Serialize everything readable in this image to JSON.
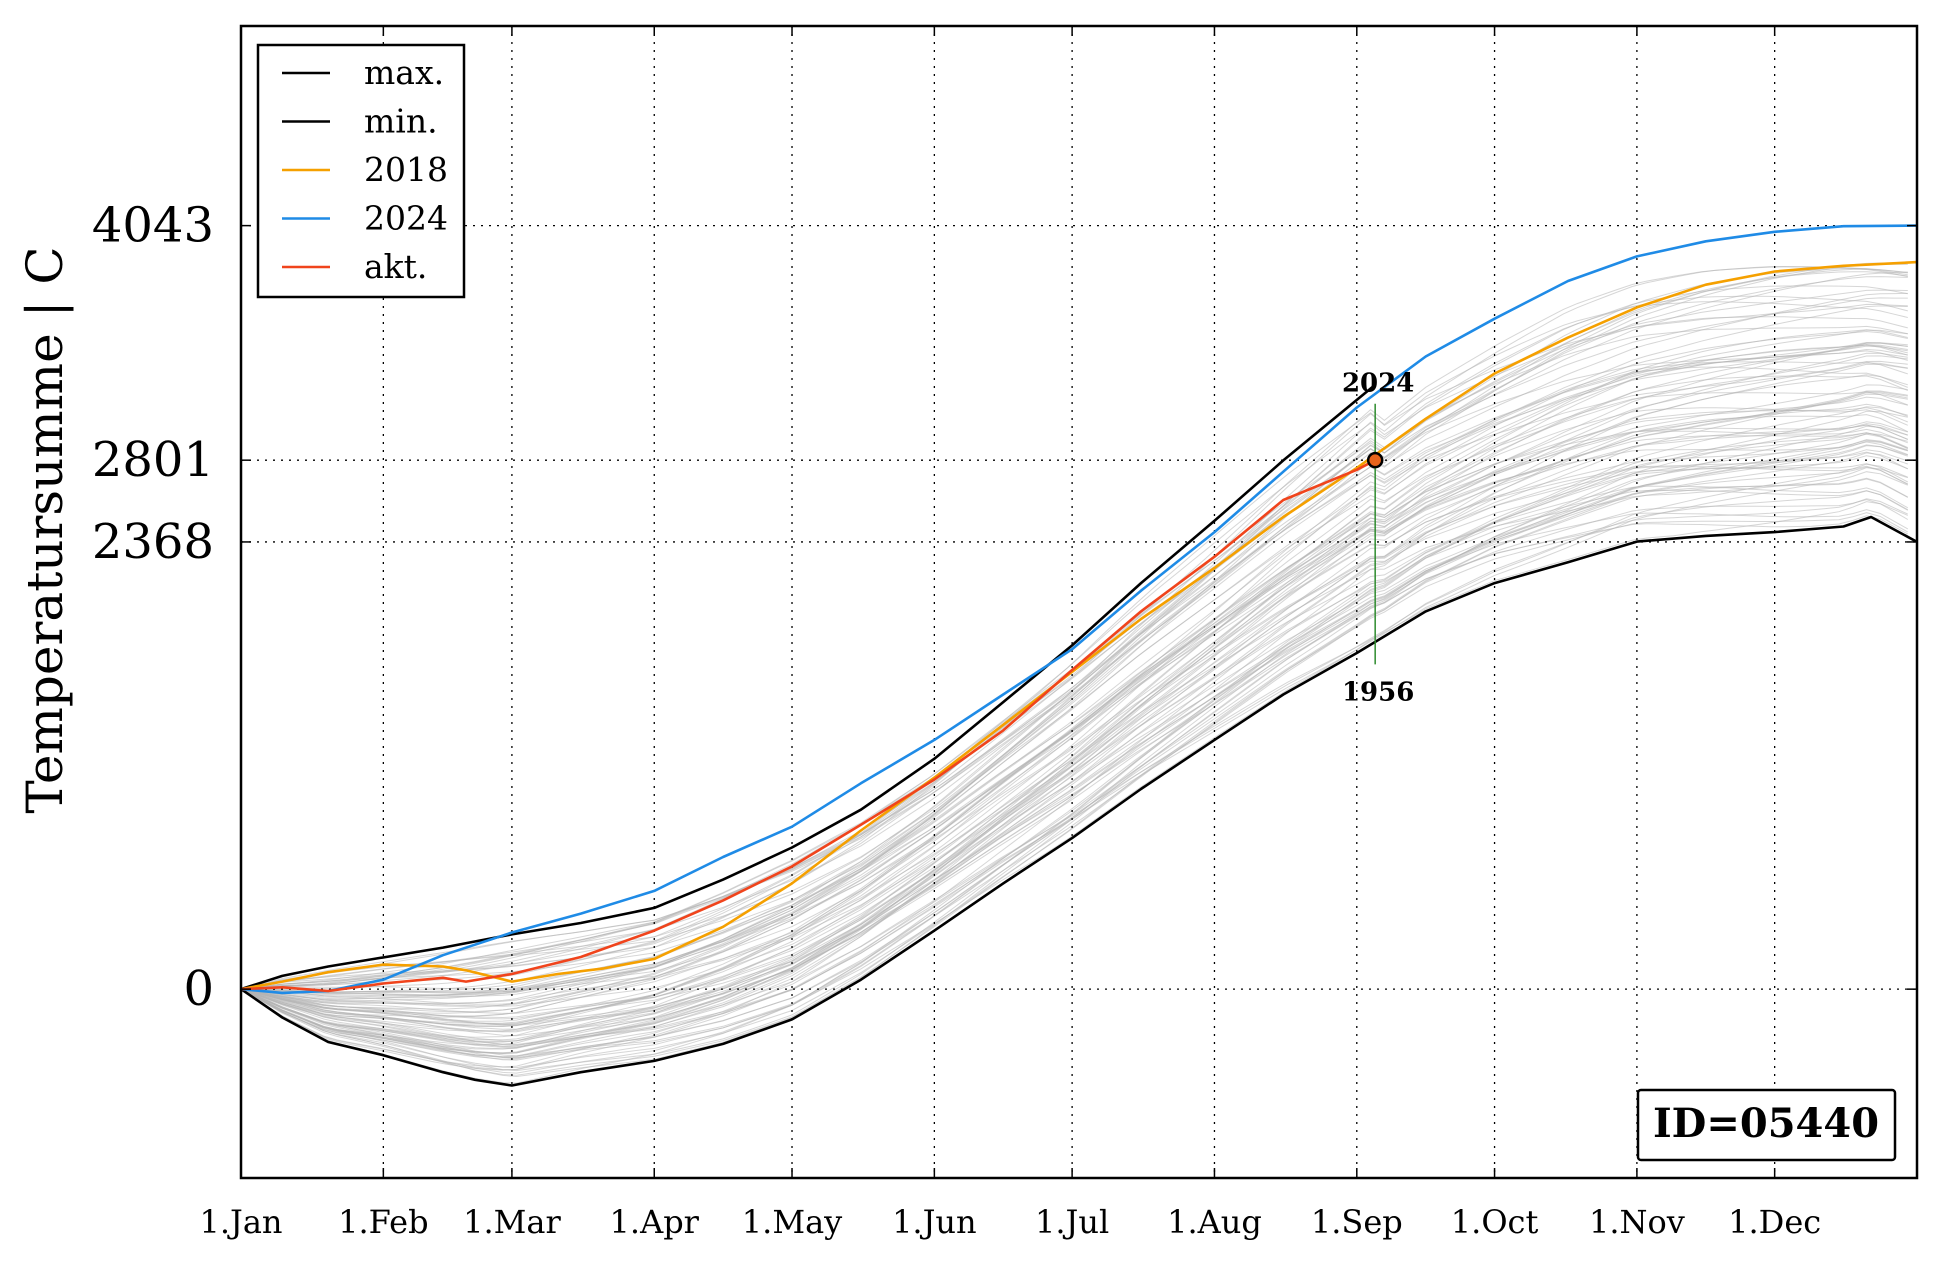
{
  "chart_data": {
    "type": "line",
    "title": "",
    "xlabel": "",
    "ylabel": "Temperatursumme | C",
    "ylim": [
      -1000,
      5100
    ],
    "x_unit": "day-of-year",
    "xlim": [
      1,
      366
    ],
    "x_ticks": [
      {
        "day": 1,
        "label": "1.Jan"
      },
      {
        "day": 32,
        "label": "1.Feb"
      },
      {
        "day": 60,
        "label": "1.Mar"
      },
      {
        "day": 91,
        "label": "1.Apr"
      },
      {
        "day": 121,
        "label": "1.May"
      },
      {
        "day": 152,
        "label": "1.Jun"
      },
      {
        "day": 182,
        "label": "1.Jul"
      },
      {
        "day": 213,
        "label": "1.Aug"
      },
      {
        "day": 244,
        "label": "1.Sep"
      },
      {
        "day": 274,
        "label": "1.Oct"
      },
      {
        "day": 305,
        "label": "1.Nov"
      },
      {
        "day": 335,
        "label": "1.Dec"
      }
    ],
    "y_ticks": [
      0,
      2368,
      2801,
      4043
    ],
    "y_tick_labels": [
      "0",
      "2368",
      "2801",
      "4043"
    ],
    "grid": true,
    "legend_position": "top-left",
    "series": [
      {
        "name": "max.",
        "color": "#000000",
        "x": [
          1,
          10,
          20,
          30,
          45,
          60,
          75,
          91,
          106,
          121,
          136,
          152,
          167,
          182,
          197,
          213,
          228,
          248
        ],
        "y": [
          0,
          70,
          120,
          160,
          220,
          290,
          350,
          430,
          580,
          750,
          950,
          1220,
          1520,
          1820,
          2150,
          2480,
          2800,
          3200
        ]
      },
      {
        "name": "min.",
        "color": "#000000",
        "x": [
          1,
          10,
          20,
          32,
          45,
          52,
          60,
          75,
          91,
          106,
          121,
          136,
          152,
          167,
          182,
          197,
          213,
          228,
          244,
          259,
          274,
          290,
          305,
          320,
          335,
          350,
          356,
          366
        ],
        "y": [
          0,
          -150,
          -280,
          -350,
          -440,
          -480,
          -510,
          -440,
          -380,
          -290,
          -160,
          50,
          310,
          560,
          800,
          1060,
          1320,
          1560,
          1780,
          2000,
          2150,
          2260,
          2370,
          2400,
          2420,
          2450,
          2500,
          2368
        ]
      },
      {
        "name": "2018",
        "color": "#f5a000",
        "x": [
          1,
          10,
          20,
          32,
          45,
          50,
          60,
          70,
          80,
          91,
          106,
          121,
          136,
          152,
          167,
          182,
          197,
          213,
          228,
          244,
          259,
          274,
          290,
          305,
          320,
          335,
          350,
          366
        ],
        "y": [
          0,
          40,
          90,
          130,
          120,
          100,
          40,
          80,
          110,
          160,
          330,
          560,
          840,
          1120,
          1400,
          1680,
          1960,
          2230,
          2500,
          2760,
          3020,
          3260,
          3450,
          3610,
          3730,
          3800,
          3830,
          3850
        ]
      },
      {
        "name": "2024",
        "color": "#1f8be6",
        "x": [
          1,
          10,
          20,
          32,
          45,
          60,
          75,
          91,
          106,
          121,
          136,
          152,
          167,
          182,
          197,
          213,
          228,
          244,
          259,
          274,
          290,
          305,
          320,
          335,
          350,
          366
        ],
        "y": [
          0,
          -20,
          -10,
          50,
          180,
          300,
          400,
          520,
          700,
          860,
          1090,
          1320,
          1560,
          1800,
          2110,
          2420,
          2740,
          3080,
          3350,
          3550,
          3750,
          3880,
          3960,
          4010,
          4040,
          4043
        ]
      },
      {
        "name": "akt.",
        "color": "#f0441c",
        "x": [
          1,
          10,
          20,
          32,
          45,
          50,
          60,
          75,
          91,
          106,
          121,
          136,
          152,
          167,
          182,
          197,
          213,
          228,
          244,
          248
        ],
        "y": [
          0,
          10,
          -10,
          30,
          60,
          40,
          80,
          170,
          310,
          470,
          650,
          870,
          1110,
          1370,
          1690,
          2000,
          2290,
          2590,
          2750,
          2801
        ]
      }
    ],
    "background_years_note": "",
    "annotations": [
      {
        "text": "2024",
        "x": 248,
        "y": 3100
      },
      {
        "text": "1956",
        "x": 248,
        "y": 1720
      }
    ],
    "current_marker": {
      "x": 248,
      "y": 2801
    },
    "marker_line": {
      "x": 248,
      "y_from": 1720,
      "y_to": 3100,
      "color": "#2e8b2e"
    },
    "id_box": "ID=05440"
  },
  "colors": {
    "grid": "#000000",
    "background_curves": "#b4b4b4"
  }
}
